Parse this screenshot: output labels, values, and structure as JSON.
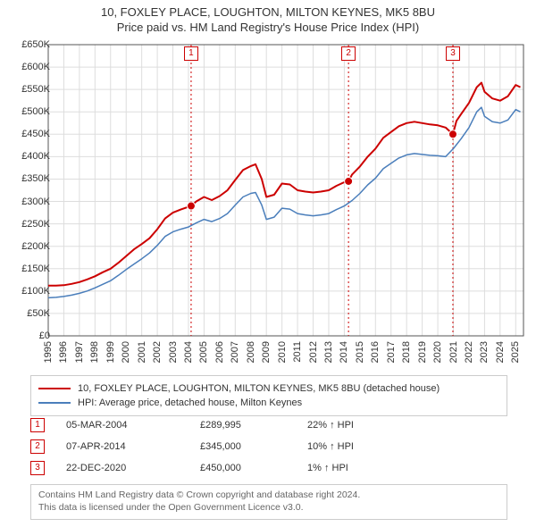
{
  "title": {
    "line1": "10, FOXLEY PLACE, LOUGHTON, MILTON KEYNES, MK5 8BU",
    "line2": "Price paid vs. HM Land Registry's House Price Index (HPI)"
  },
  "chart": {
    "type": "line",
    "background_color": "#ffffff",
    "grid_color": "#dddddd",
    "axis_color": "#555555",
    "tick_fontsize": 11,
    "x": {
      "min": 1995,
      "max": 2025.5,
      "ticks": [
        1995,
        1996,
        1997,
        1998,
        1999,
        2000,
        2001,
        2002,
        2003,
        2004,
        2005,
        2006,
        2007,
        2008,
        2009,
        2010,
        2011,
        2012,
        2013,
        2014,
        2015,
        2016,
        2017,
        2018,
        2019,
        2020,
        2021,
        2022,
        2023,
        2024,
        2025
      ]
    },
    "y": {
      "min": 0,
      "max": 650000,
      "tick_step": 50000,
      "labels": [
        "£0",
        "£50K",
        "£100K",
        "£150K",
        "£200K",
        "£250K",
        "£300K",
        "£350K",
        "£400K",
        "£450K",
        "£500K",
        "£550K",
        "£600K",
        "£650K"
      ]
    },
    "series": [
      {
        "color": "#cc0000",
        "width": 2,
        "points": [
          [
            1995.0,
            112000
          ],
          [
            1995.5,
            112000
          ],
          [
            1996.0,
            113000
          ],
          [
            1996.5,
            116000
          ],
          [
            1997.0,
            120000
          ],
          [
            1997.5,
            126000
          ],
          [
            1998.0,
            133000
          ],
          [
            1998.5,
            142000
          ],
          [
            1999.0,
            150000
          ],
          [
            1999.5,
            163000
          ],
          [
            2000.0,
            178000
          ],
          [
            2000.5,
            193000
          ],
          [
            2001.0,
            205000
          ],
          [
            2001.5,
            218000
          ],
          [
            2002.0,
            238000
          ],
          [
            2002.5,
            262000
          ],
          [
            2003.0,
            275000
          ],
          [
            2003.5,
            282000
          ],
          [
            2004.0,
            288000
          ],
          [
            2004.17,
            289995
          ],
          [
            2004.5,
            300000
          ],
          [
            2005.0,
            310000
          ],
          [
            2005.5,
            303000
          ],
          [
            2006.0,
            312000
          ],
          [
            2006.5,
            325000
          ],
          [
            2007.0,
            348000
          ],
          [
            2007.5,
            370000
          ],
          [
            2008.0,
            379000
          ],
          [
            2008.3,
            383000
          ],
          [
            2008.7,
            350000
          ],
          [
            2009.0,
            310000
          ],
          [
            2009.5,
            315000
          ],
          [
            2010.0,
            340000
          ],
          [
            2010.5,
            338000
          ],
          [
            2011.0,
            325000
          ],
          [
            2011.5,
            322000
          ],
          [
            2012.0,
            320000
          ],
          [
            2012.5,
            322000
          ],
          [
            2013.0,
            325000
          ],
          [
            2013.5,
            335000
          ],
          [
            2014.0,
            343000
          ],
          [
            2014.27,
            345000
          ],
          [
            2014.5,
            360000
          ],
          [
            2015.0,
            378000
          ],
          [
            2015.5,
            400000
          ],
          [
            2016.0,
            418000
          ],
          [
            2016.5,
            442000
          ],
          [
            2017.0,
            455000
          ],
          [
            2017.5,
            468000
          ],
          [
            2018.0,
            475000
          ],
          [
            2018.5,
            478000
          ],
          [
            2019.0,
            475000
          ],
          [
            2019.5,
            472000
          ],
          [
            2020.0,
            470000
          ],
          [
            2020.5,
            465000
          ],
          [
            2020.97,
            450000
          ],
          [
            2021.2,
            480000
          ],
          [
            2021.5,
            495000
          ],
          [
            2022.0,
            520000
          ],
          [
            2022.5,
            555000
          ],
          [
            2022.8,
            565000
          ],
          [
            2023.0,
            545000
          ],
          [
            2023.5,
            530000
          ],
          [
            2024.0,
            525000
          ],
          [
            2024.5,
            535000
          ],
          [
            2025.0,
            560000
          ],
          [
            2025.3,
            555000
          ]
        ]
      },
      {
        "color": "#4a7ebb",
        "width": 1.5,
        "points": [
          [
            1995.0,
            85000
          ],
          [
            1995.5,
            86000
          ],
          [
            1996.0,
            88000
          ],
          [
            1996.5,
            91000
          ],
          [
            1997.0,
            95000
          ],
          [
            1997.5,
            100000
          ],
          [
            1998.0,
            107000
          ],
          [
            1998.5,
            115000
          ],
          [
            1999.0,
            123000
          ],
          [
            1999.5,
            135000
          ],
          [
            2000.0,
            148000
          ],
          [
            2000.5,
            160000
          ],
          [
            2001.0,
            172000
          ],
          [
            2001.5,
            185000
          ],
          [
            2002.0,
            202000
          ],
          [
            2002.5,
            222000
          ],
          [
            2003.0,
            232000
          ],
          [
            2003.5,
            238000
          ],
          [
            2004.0,
            243000
          ],
          [
            2004.5,
            252000
          ],
          [
            2005.0,
            260000
          ],
          [
            2005.5,
            255000
          ],
          [
            2006.0,
            262000
          ],
          [
            2006.5,
            273000
          ],
          [
            2007.0,
            292000
          ],
          [
            2007.5,
            310000
          ],
          [
            2008.0,
            318000
          ],
          [
            2008.3,
            320000
          ],
          [
            2008.7,
            292000
          ],
          [
            2009.0,
            260000
          ],
          [
            2009.5,
            265000
          ],
          [
            2010.0,
            285000
          ],
          [
            2010.5,
            283000
          ],
          [
            2011.0,
            273000
          ],
          [
            2011.5,
            270000
          ],
          [
            2012.0,
            268000
          ],
          [
            2012.5,
            270000
          ],
          [
            2013.0,
            273000
          ],
          [
            2013.5,
            282000
          ],
          [
            2014.0,
            290000
          ],
          [
            2014.5,
            302000
          ],
          [
            2015.0,
            318000
          ],
          [
            2015.5,
            337000
          ],
          [
            2016.0,
            352000
          ],
          [
            2016.5,
            373000
          ],
          [
            2017.0,
            385000
          ],
          [
            2017.5,
            397000
          ],
          [
            2018.0,
            404000
          ],
          [
            2018.5,
            407000
          ],
          [
            2019.0,
            405000
          ],
          [
            2019.5,
            403000
          ],
          [
            2020.0,
            402000
          ],
          [
            2020.5,
            400000
          ],
          [
            2021.0,
            418000
          ],
          [
            2021.5,
            440000
          ],
          [
            2022.0,
            465000
          ],
          [
            2022.5,
            500000
          ],
          [
            2022.8,
            510000
          ],
          [
            2023.0,
            490000
          ],
          [
            2023.5,
            478000
          ],
          [
            2024.0,
            475000
          ],
          [
            2024.5,
            482000
          ],
          [
            2025.0,
            505000
          ],
          [
            2025.3,
            500000
          ]
        ]
      }
    ],
    "sale_markers": [
      {
        "n": "1",
        "x": 2004.17,
        "y": 289995
      },
      {
        "n": "2",
        "x": 2014.27,
        "y": 345000
      },
      {
        "n": "3",
        "x": 2020.97,
        "y": 450000
      }
    ],
    "reference_lines": {
      "color": "#cc0000",
      "dash": "2,3"
    }
  },
  "legend": {
    "items": [
      {
        "color": "#cc0000",
        "label": "10, FOXLEY PLACE, LOUGHTON, MILTON KEYNES, MK5 8BU (detached house)"
      },
      {
        "color": "#4a7ebb",
        "label": "HPI: Average price, detached house, Milton Keynes"
      }
    ]
  },
  "sales": [
    {
      "n": "1",
      "date": "05-MAR-2004",
      "price": "£289,995",
      "vs_hpi": "22% ↑ HPI"
    },
    {
      "n": "2",
      "date": "07-APR-2014",
      "price": "£345,000",
      "vs_hpi": "10% ↑ HPI"
    },
    {
      "n": "3",
      "date": "22-DEC-2020",
      "price": "£450,000",
      "vs_hpi": "1% ↑ HPI"
    }
  ],
  "footer": {
    "line1": "Contains HM Land Registry data © Crown copyright and database right 2024.",
    "line2": "This data is licensed under the Open Government Licence v3.0."
  }
}
